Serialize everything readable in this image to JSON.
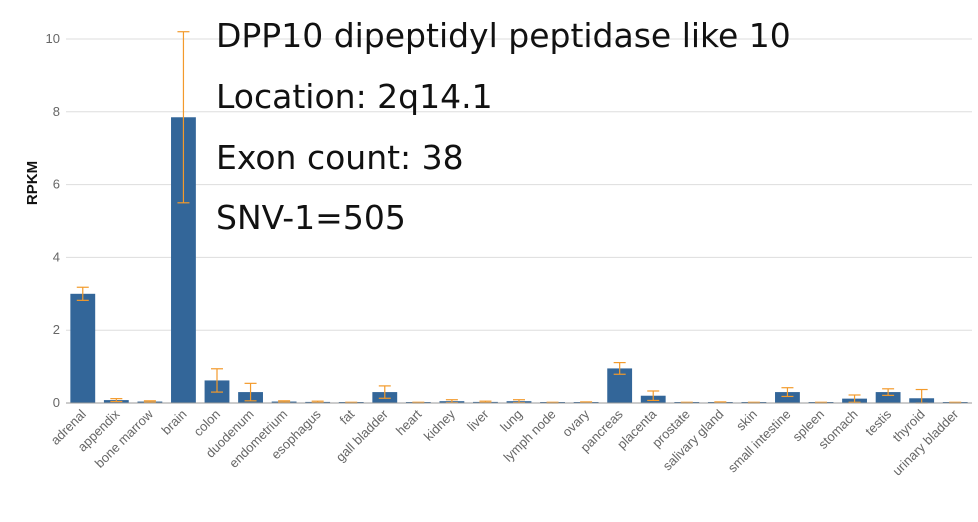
{
  "chart_data": {
    "type": "bar",
    "title": "",
    "xlabel": "",
    "ylabel": "RPKM",
    "ylim": [
      0,
      10.5
    ],
    "yticks": [
      0,
      2,
      4,
      6,
      8,
      10
    ],
    "grid": true,
    "annotations": [
      "DPP10 dipeptidyl peptidase like 10",
      "Location: 2q14.1",
      "Exon count: 38",
      "SNV-1=505"
    ],
    "categories": [
      "adrenal",
      "appendix",
      "bone marrow",
      "brain",
      "colon",
      "duodenum",
      "endometrium",
      "esophagus",
      "fat",
      "gall bladder",
      "heart",
      "kidney",
      "liver",
      "lung",
      "lymph node",
      "ovary",
      "pancreas",
      "placenta",
      "prostate",
      "salivary gland",
      "skin",
      "small intestine",
      "spleen",
      "stomach",
      "testis",
      "thyroid",
      "urinary bladder"
    ],
    "values": [
      3.0,
      0.08,
      0.04,
      7.85,
      0.62,
      0.3,
      0.04,
      0.03,
      0.01,
      0.3,
      0.01,
      0.05,
      0.03,
      0.05,
      0.01,
      0.02,
      0.95,
      0.2,
      0.01,
      0.02,
      0.01,
      0.3,
      0.01,
      0.12,
      0.3,
      0.13,
      0.01
    ],
    "errors": [
      0.18,
      0.04,
      0.02,
      2.35,
      0.32,
      0.24,
      0.02,
      0.02,
      0.01,
      0.17,
      0.01,
      0.04,
      0.02,
      0.04,
      0.01,
      0.01,
      0.16,
      0.13,
      0.01,
      0.01,
      0.01,
      0.12,
      0.01,
      0.1,
      0.09,
      0.24,
      0.01
    ],
    "colors": {
      "bar": "#336699",
      "error": "#f39a2b",
      "grid": "#dddddd",
      "axis": "#999999"
    }
  }
}
